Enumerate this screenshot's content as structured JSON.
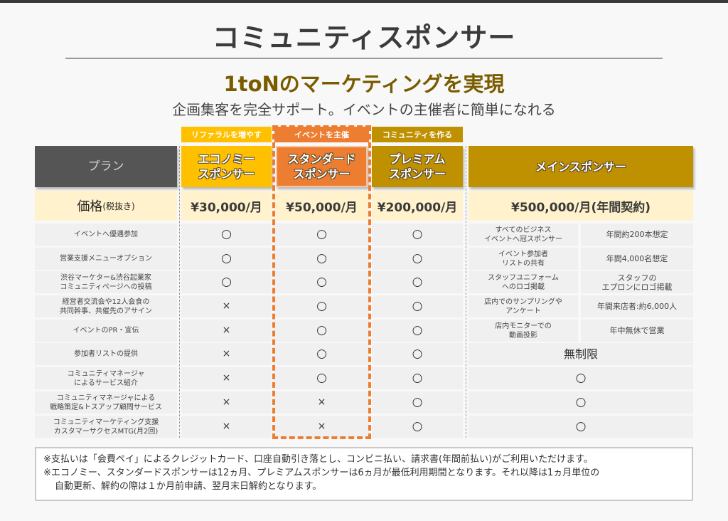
{
  "header": {
    "title": "コミュニティスポンサー",
    "subtitle": "1toNのマーケティングを実現",
    "tagline": "企画集客を完全サポート。イベントの主催者に簡単になれる"
  },
  "colors": {
    "economy": "#ffc000",
    "standard": "#ed7d31",
    "premium": "#bf9000",
    "main": "#bf9000",
    "plan_header": "#555555",
    "price_row": "#fff2cc",
    "subtitle": "#7a5c00"
  },
  "plans": {
    "label_header": "プラン",
    "price_label": "価格",
    "price_label_note": "(税抜き)",
    "economy": {
      "tag": "リファラルを増やす",
      "name_line1": "エコノミー",
      "name_line2": "スポンサー",
      "price": "¥30,000/月"
    },
    "standard": {
      "tag": "イベントを主催",
      "name_line1": "スタンダード",
      "name_line2": "スポンサー",
      "price": "¥50,000/月"
    },
    "premium": {
      "tag": "コミュニティを作る",
      "name_line1": "プレミアム",
      "name_line2": "スポンサー",
      "price": "¥200,000/月"
    },
    "main": {
      "name": "メインスポンサー",
      "price": "¥500,000/月(年間契約)"
    }
  },
  "features": [
    {
      "l1": "イベントへ優遇参加",
      "l2": "",
      "economy": "○",
      "standard": "○",
      "premium": "○"
    },
    {
      "l1": "営業支援メニューオプション",
      "l2": "",
      "economy": "○",
      "standard": "○",
      "premium": "○"
    },
    {
      "l1": "渋谷マーケター&渋谷起業家",
      "l2": "コミュニティページへの投稿",
      "economy": "○",
      "standard": "○",
      "premium": "○"
    },
    {
      "l1": "経営者交流会や12人会食の",
      "l2": "共同幹事、共催先のアサイン",
      "economy": "×",
      "standard": "○",
      "premium": "○"
    },
    {
      "l1": "イベントのPR・宣伝",
      "l2": "",
      "economy": "×",
      "standard": "○",
      "premium": "○"
    },
    {
      "l1": "参加者リストの提供",
      "l2": "",
      "economy": "×",
      "standard": "○",
      "premium": "○"
    },
    {
      "l1": "コミュニティマネージャ",
      "l2": "によるサービス紹介",
      "economy": "×",
      "standard": "○",
      "premium": "○"
    },
    {
      "l1": "コミュニティマネージャによる",
      "l2": "戦略策定&トスアップ顧問サービス",
      "economy": "×",
      "standard": "×",
      "premium": "○"
    },
    {
      "l1": "コミュニティマーケティング支援",
      "l2": "カスタマーサクセスMTG(月2回)",
      "economy": "×",
      "standard": "×",
      "premium": "○"
    }
  ],
  "main_sponsor_benefits": [
    {
      "l1": "すべてのビジネス",
      "l2": "イベントへ冠スポンサー",
      "v1": "年間約200本想定",
      "v2": ""
    },
    {
      "l1": "イベント参加者",
      "l2": "リストの共有",
      "v1": "年間4,000名想定",
      "v2": ""
    },
    {
      "l1": "スタッフユニフォーム",
      "l2": "へのロゴ掲載",
      "v1": "スタッフの",
      "v2": "エプロンにロゴ掲載"
    },
    {
      "l1": "店内でのサンプリングや",
      "l2": "アンケート",
      "v1": "年間来店者:約6,000人",
      "v2": ""
    },
    {
      "l1": "店内モニターでの",
      "l2": "動画投影",
      "v1": "年中無休で営業",
      "v2": ""
    }
  ],
  "main_sponsor_rows": [
    "無制限",
    "○",
    "○",
    "○"
  ],
  "notes": {
    "line1": "※支払いは「会費ペイ」によるクレジットカード、口座自動引き落とし、コンビニ払い、請求書(年間前払い)がご利用いただけます。",
    "line2": "※エコノミー、スタンダードスポンサーは12ヵ月、プレミアムスポンサーは6ヵ月が最低利用期間となります。それ以降は1ヵ月単位の",
    "line3": "自動更新、解約の際は１か月前申請、翌月末日解約となります。"
  }
}
